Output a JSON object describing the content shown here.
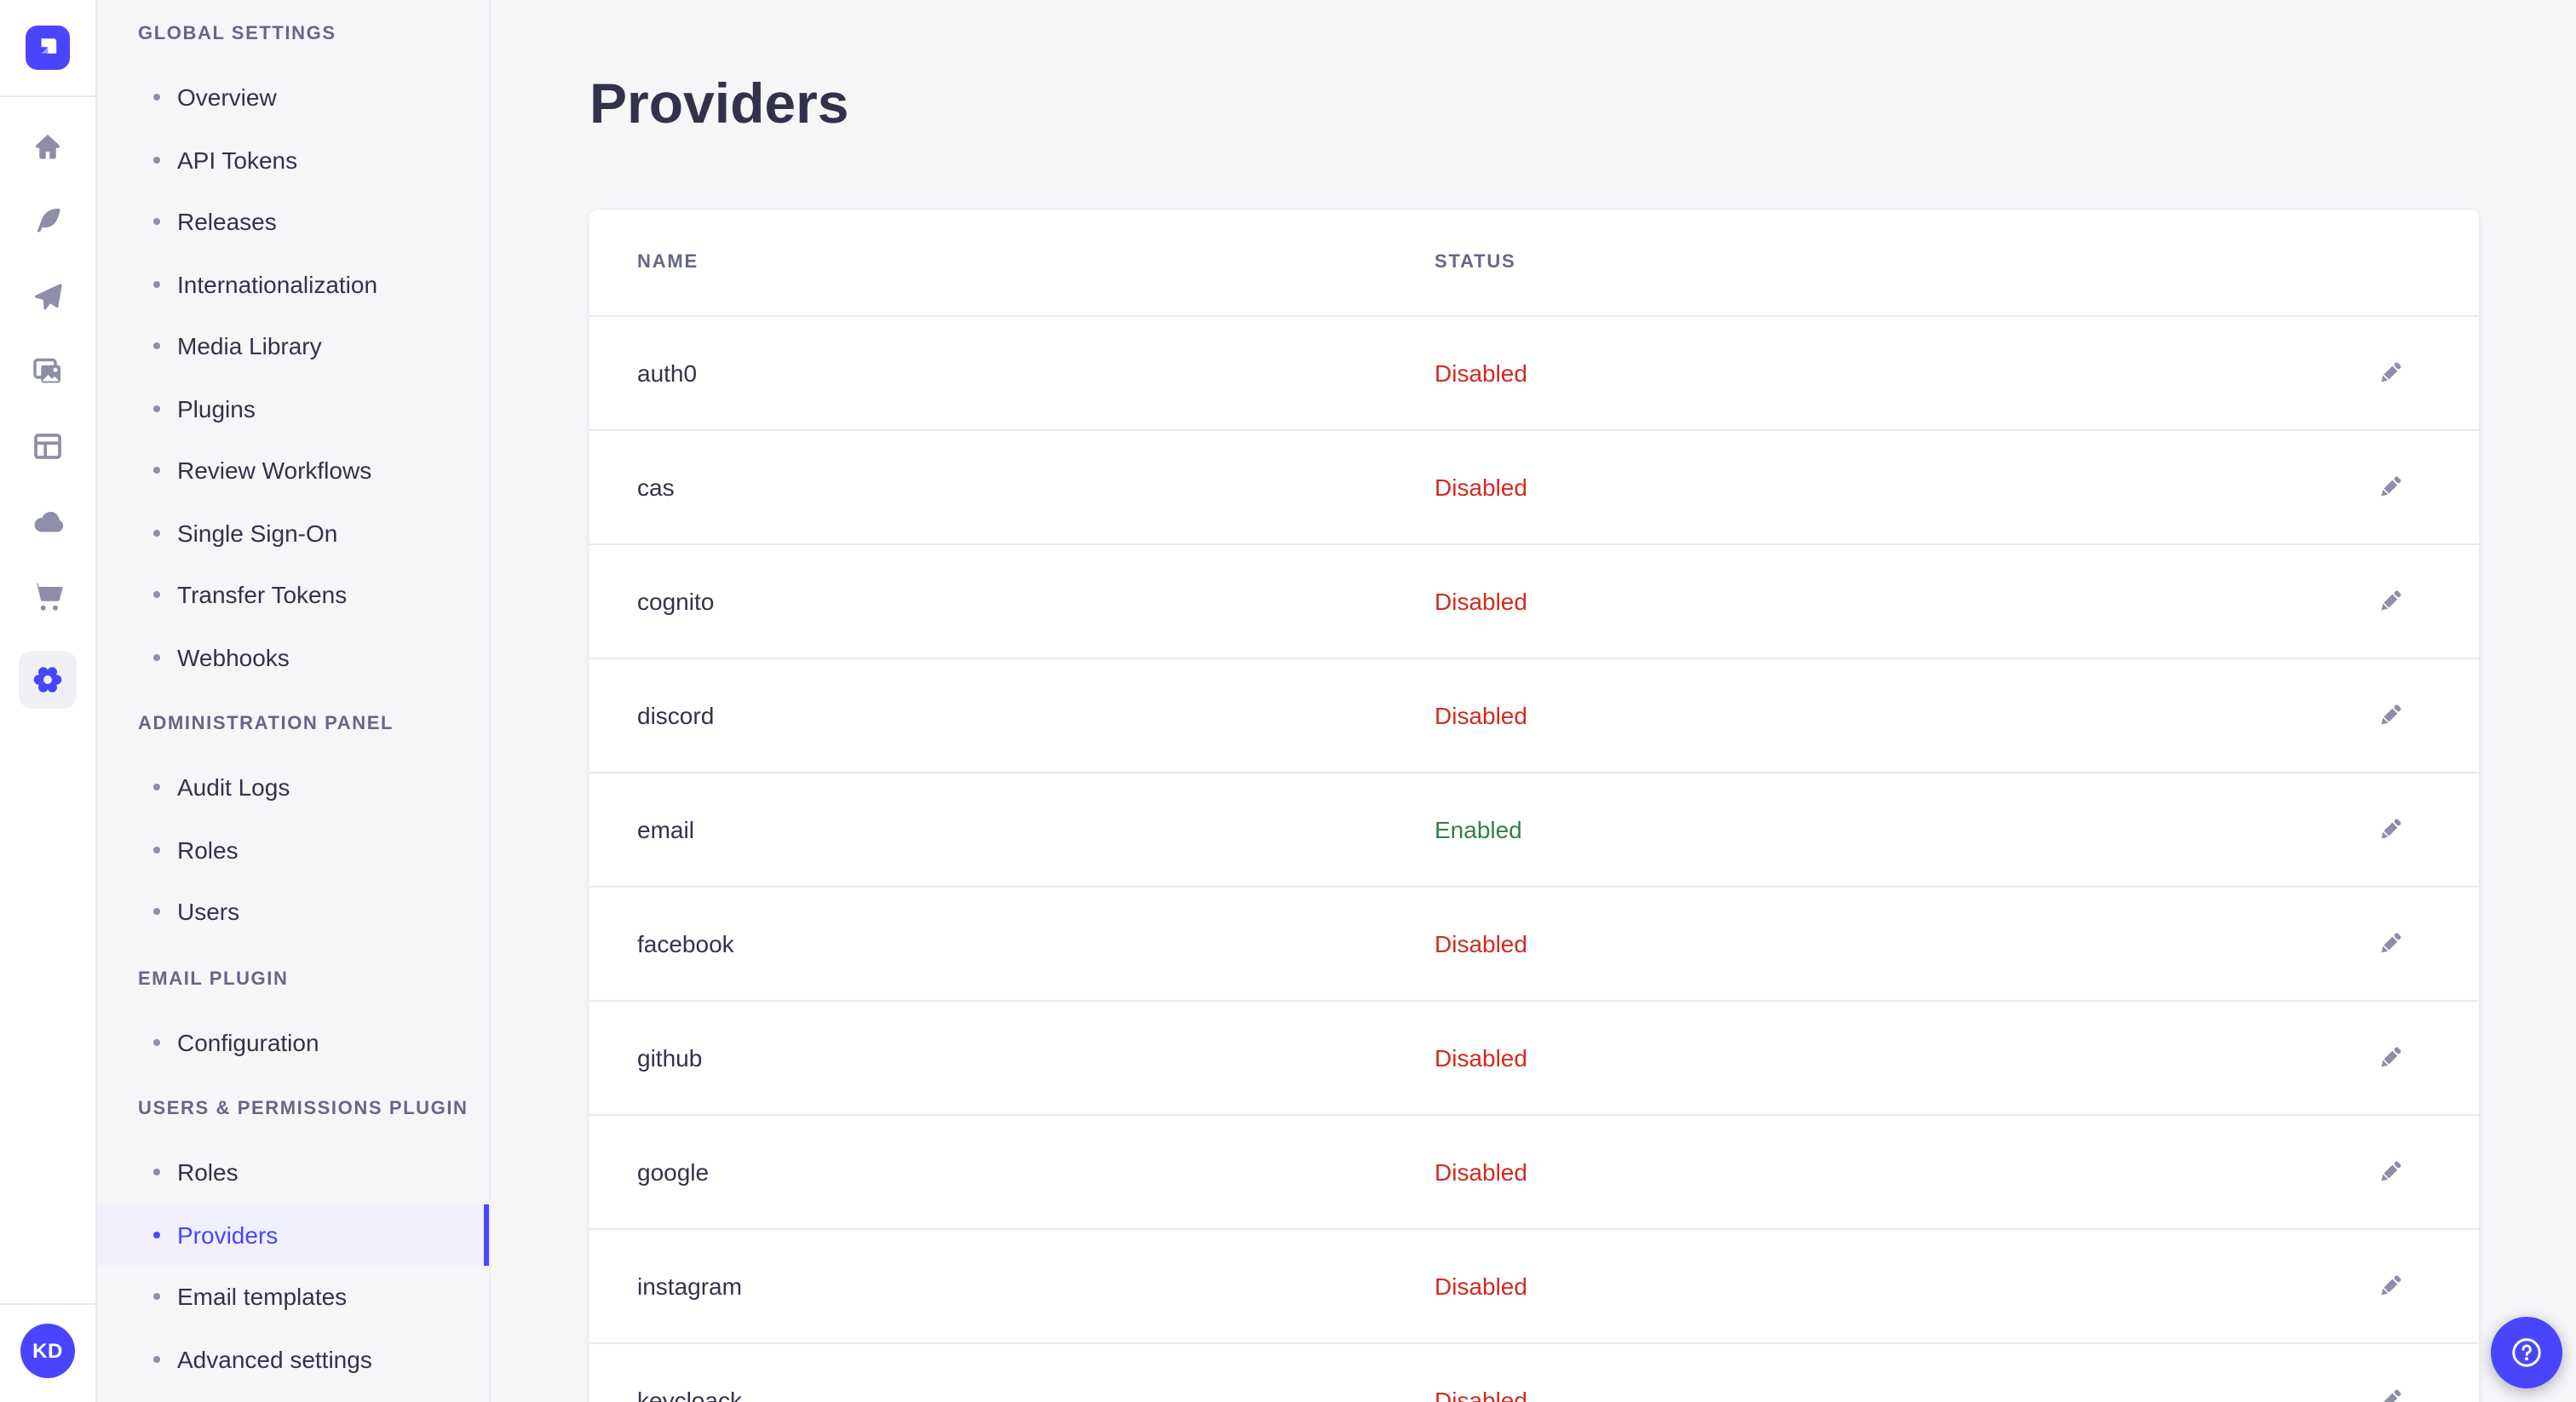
{
  "colors": {
    "accent": "#4945ff",
    "active_bg": "#f0f0ff",
    "status_enabled": "#328048",
    "status_disabled": "#d02b20",
    "text_primary": "#32324d",
    "text_secondary": "#666687",
    "icon_gray": "#8e8ea9"
  },
  "rail": {
    "logo": "strapi-logo",
    "icons": [
      {
        "name": "home-icon"
      },
      {
        "name": "feather-icon"
      },
      {
        "name": "send-icon"
      },
      {
        "name": "media-icon"
      },
      {
        "name": "layout-icon"
      },
      {
        "name": "cloud-icon"
      },
      {
        "name": "cart-icon"
      },
      {
        "name": "gear-icon",
        "active": true
      }
    ],
    "avatar_initials": "KD"
  },
  "subnav": {
    "sections": [
      {
        "label": "Global Settings",
        "items": [
          {
            "label": "Overview"
          },
          {
            "label": "API Tokens"
          },
          {
            "label": "Releases"
          },
          {
            "label": "Internationalization"
          },
          {
            "label": "Media Library"
          },
          {
            "label": "Plugins"
          },
          {
            "label": "Review Workflows"
          },
          {
            "label": "Single Sign-On"
          },
          {
            "label": "Transfer Tokens"
          },
          {
            "label": "Webhooks"
          }
        ]
      },
      {
        "label": "Administration Panel",
        "items": [
          {
            "label": "Audit Logs"
          },
          {
            "label": "Roles"
          },
          {
            "label": "Users"
          }
        ]
      },
      {
        "label": "Email Plugin",
        "items": [
          {
            "label": "Configuration"
          }
        ]
      },
      {
        "label": "Users & Permissions plugin",
        "items": [
          {
            "label": "Roles"
          },
          {
            "label": "Providers",
            "active": true
          },
          {
            "label": "Email templates"
          },
          {
            "label": "Advanced settings"
          }
        ]
      }
    ]
  },
  "main": {
    "title": "Providers"
  },
  "table": {
    "columns": [
      "Name",
      "Status"
    ],
    "rows": [
      {
        "name": "auth0",
        "status": "Disabled",
        "enabled": false
      },
      {
        "name": "cas",
        "status": "Disabled",
        "enabled": false
      },
      {
        "name": "cognito",
        "status": "Disabled",
        "enabled": false
      },
      {
        "name": "discord",
        "status": "Disabled",
        "enabled": false
      },
      {
        "name": "email",
        "status": "Enabled",
        "enabled": true
      },
      {
        "name": "facebook",
        "status": "Disabled",
        "enabled": false
      },
      {
        "name": "github",
        "status": "Disabled",
        "enabled": false
      },
      {
        "name": "google",
        "status": "Disabled",
        "enabled": false
      },
      {
        "name": "instagram",
        "status": "Disabled",
        "enabled": false
      },
      {
        "name": "keycloack",
        "status": "Disabled",
        "enabled": false
      }
    ]
  },
  "help": {
    "label": "help"
  }
}
